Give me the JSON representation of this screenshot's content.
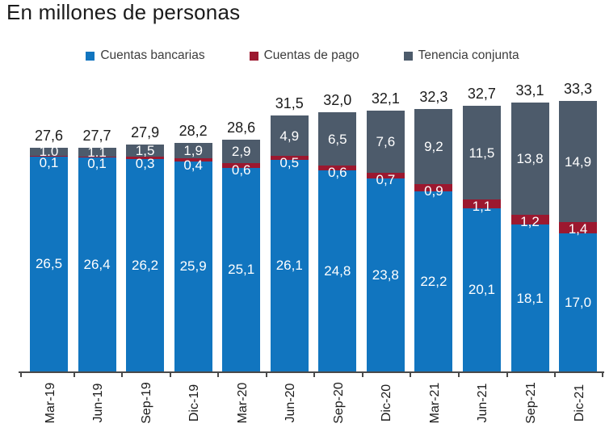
{
  "title": "En millones de personas",
  "chart_data": {
    "type": "bar",
    "stacked": true,
    "title": "En millones de personas",
    "legend_position": "top",
    "grid": false,
    "value_label_color": "#ffffff",
    "total_label_color": "#1b1b1b",
    "categories": [
      "Mar-19",
      "Jun-19",
      "Sep-19",
      "Dic-19",
      "Mar-20",
      "Jun-20",
      "Sep-20",
      "Dic-20",
      "Mar-21",
      "Jun-21",
      "Sep-21",
      "Dic-21"
    ],
    "series": [
      {
        "name": "Cuentas bancarias",
        "color": "#1175bf",
        "values": [
          26.5,
          26.4,
          26.2,
          25.9,
          25.1,
          26.1,
          24.8,
          23.8,
          22.2,
          20.1,
          18.1,
          17.0
        ],
        "labels": [
          "26,5",
          "26,4",
          "26,2",
          "25,9",
          "25,1",
          "26,1",
          "24,8",
          "23,8",
          "22,2",
          "20,1",
          "18,1",
          "17,0"
        ]
      },
      {
        "name": "Cuentas de pago",
        "color": "#9c182f",
        "values": [
          0.1,
          0.1,
          0.3,
          0.4,
          0.6,
          0.5,
          0.6,
          0.7,
          0.9,
          1.1,
          1.2,
          1.4
        ],
        "labels": [
          "0,1",
          "0,1",
          "0,3",
          "0,4",
          "0,6",
          "0,5",
          "0,6",
          "0,7",
          "0,9",
          "1,1",
          "1,2",
          "1,4"
        ]
      },
      {
        "name": "Tenencia conjunta",
        "color": "#4d5b6b",
        "values": [
          1.0,
          1.1,
          1.5,
          1.9,
          2.9,
          4.9,
          6.5,
          7.6,
          9.2,
          11.5,
          13.8,
          14.9
        ],
        "labels": [
          "1,0",
          "1,1",
          "1,5",
          "1,9",
          "2,9",
          "4,9",
          "6,5",
          "7,6",
          "9,2",
          "11,5",
          "13,8",
          "14,9"
        ]
      }
    ],
    "totals": {
      "values": [
        27.6,
        27.7,
        27.9,
        28.2,
        28.6,
        31.5,
        32.0,
        32.1,
        32.3,
        32.7,
        33.1,
        33.3
      ],
      "labels": [
        "27,6",
        "27,7",
        "27,9",
        "28,2",
        "28,6",
        "31,5",
        "32,0",
        "32,1",
        "32,3",
        "32,7",
        "33,1",
        "33,3"
      ]
    },
    "ylim": [
      0,
      33.3
    ]
  }
}
